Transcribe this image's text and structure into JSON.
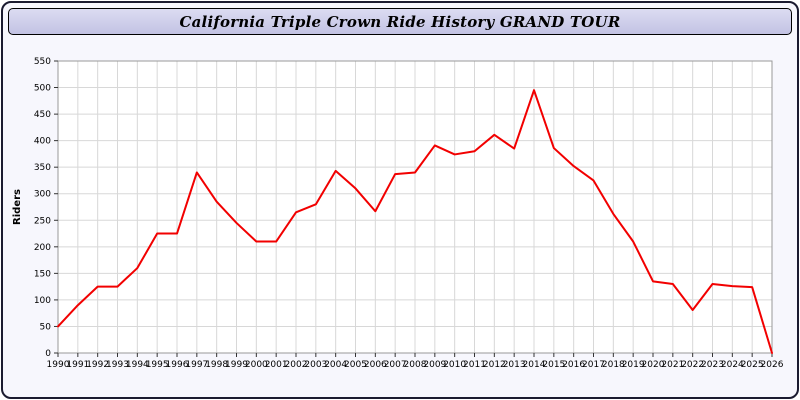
{
  "window": {
    "title": "California Triple Crown Ride History GRAND TOUR"
  },
  "colors": {
    "line": "#f20000",
    "titlebar_bg": "#ccccea",
    "page_bg": "#f7f7fd",
    "grid": "#d8d8d8",
    "plot_border": "#999999",
    "axis_text": "#000000"
  },
  "chart_data": {
    "type": "line",
    "title": "California Triple Crown Ride History GRAND TOUR",
    "xlabel": "",
    "ylabel": "Riders",
    "ylim": [
      0,
      550
    ],
    "ytick_step": 50,
    "grid": true,
    "legend": "none",
    "categories": [
      "1990",
      "1991",
      "1992",
      "1993",
      "1994",
      "1995",
      "1996",
      "1997",
      "1998",
      "1999",
      "2000",
      "2001",
      "2002",
      "2003",
      "2004",
      "2005",
      "2006",
      "2007",
      "2008",
      "2009",
      "2010",
      "2011",
      "2012",
      "2013",
      "2014",
      "2015",
      "2016",
      "2017",
      "2018",
      "2019",
      "2020",
      "2021",
      "2022",
      "2023",
      "2024",
      "2025",
      "2026"
    ],
    "series": [
      {
        "name": "Riders",
        "color": "#f20000",
        "values": [
          50,
          90,
          125,
          125,
          160,
          225,
          225,
          340,
          285,
          245,
          210,
          210,
          265,
          280,
          343,
          310,
          267,
          337,
          340,
          391,
          374,
          380,
          411,
          385,
          495,
          386,
          352,
          325,
          262,
          210,
          135,
          130,
          81,
          130,
          126,
          124,
          0
        ]
      }
    ]
  }
}
